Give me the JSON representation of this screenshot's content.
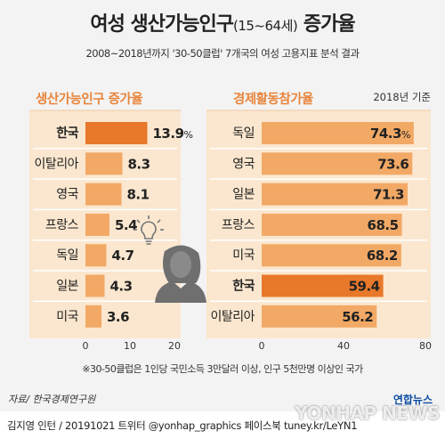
{
  "header": {
    "title_main": "여성 생산가능인구",
    "title_paren": "(15~64세)",
    "title_suffix": " 증가율",
    "subtitle": "2008~2018년까지 '30-50클럽' 7개국의 여성 고용지표 분석 결과"
  },
  "chart_data": [
    {
      "type": "bar",
      "orientation": "horizontal",
      "title": "생산가능인구 증가율",
      "categories": [
        "한국",
        "이탈리아",
        "영국",
        "프랑스",
        "독일",
        "일본",
        "미국"
      ],
      "values": [
        13.9,
        8.3,
        8.1,
        5.4,
        4.7,
        4.3,
        3.6
      ],
      "value_labels": [
        "13.9%",
        "8.3",
        "8.1",
        "5.4",
        "4.7",
        "4.3",
        "3.6"
      ],
      "highlight": "한국",
      "xlim": [
        0,
        20
      ],
      "xticks": [
        "0",
        "10",
        "20"
      ],
      "grid": false
    },
    {
      "type": "bar",
      "orientation": "horizontal",
      "title": "경제활동참가율",
      "note": "2018년 기준",
      "categories": [
        "독일",
        "영국",
        "일본",
        "프랑스",
        "미국",
        "한국",
        "이탈리아"
      ],
      "values": [
        74.3,
        73.6,
        71.3,
        68.5,
        68.2,
        59.4,
        56.2
      ],
      "value_labels": [
        "74.3%",
        "73.6",
        "71.3",
        "68.5",
        "68.2",
        "59.4",
        "56.2"
      ],
      "highlight": "한국",
      "xlim": [
        0,
        80
      ],
      "xticks": [
        "0",
        "40",
        "80"
      ],
      "grid": false
    }
  ],
  "colors": {
    "highlight_bar": "#e8782a",
    "bar": "#f2a966",
    "panel_bg": "#fbe7cf",
    "divider": "#f0c9a0",
    "accent_text": "#e8853d"
  },
  "icon": "woman-with-lightbulb-icon",
  "note": "※30-50클럽은 1인당 국민소득 3만달러 이상, 인구 5천만명 이상인 국가",
  "source": "자료/ 한국경제연구원",
  "footer": {
    "credit": "김지영 인턴 / 20191021 트위터 @yonhap_graphics  페이스북 tuney.kr/LeYN1",
    "agency": "연합뉴스",
    "watermark": "YONHAP NEWS"
  }
}
